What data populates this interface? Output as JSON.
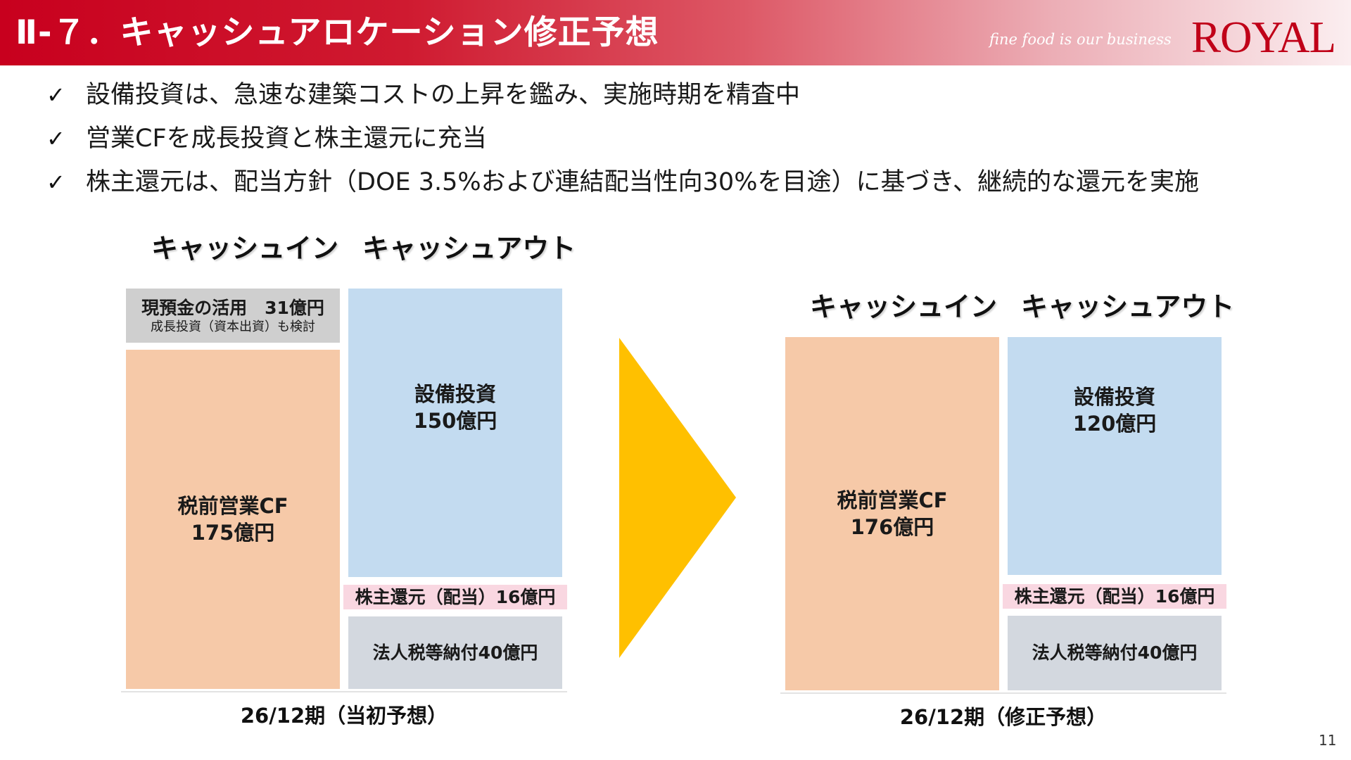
{
  "header": {
    "title": "Ⅱ-７．キャッシュアロケーション修正予想",
    "tagline": "fine food is our business",
    "logo_text": "ROYAL"
  },
  "bullets": [
    {
      "mark": "✓",
      "text": "設備投資は、急速な建築コストの上昇を鑑み、実施時期を精査中"
    },
    {
      "mark": "✓",
      "text": "営業CFを成長投資と株主還元に充当"
    },
    {
      "mark": "✓",
      "text": "株主還元は、配当方針（DOE 3.5%および連結配当性向30%を目途）に基づき、継続的な還元を実施"
    }
  ],
  "initial": {
    "cash_in_heading": "キャッシュイン",
    "cash_out_heading": "キャッシュアウト",
    "deposits_title": "現預金の活用　31億円",
    "deposits_note": "成長投資（資本出資）も検討",
    "pretax_cf_label": "税前営業CF",
    "pretax_cf_value": "175億円",
    "capex_label": "設備投資",
    "capex_value": "150億円",
    "dividend": "株主還元（配当）16億円",
    "tax": "法人税等納付40億円",
    "period": "26/12期（当初予想）"
  },
  "revised": {
    "cash_in_heading": "キャッシュイン",
    "cash_out_heading": "キャッシュアウト",
    "pretax_cf_label": "税前営業CF",
    "pretax_cf_value": "176億円",
    "capex_label": "設備投資",
    "capex_value": "120億円",
    "dividend": "株主還元（配当）16億円",
    "tax": "法人税等納付40億円",
    "period": "26/12期（修正予想）"
  },
  "colors": {
    "header_red": "#c8001e",
    "cash_in": "#f6c9a8",
    "capex": "#c3dbf0",
    "dividend": "#f9d7e1",
    "tax": "#d3d8df",
    "deposits": "#cfcfcf",
    "arrow": "#ffc000"
  },
  "page_number": "11"
}
